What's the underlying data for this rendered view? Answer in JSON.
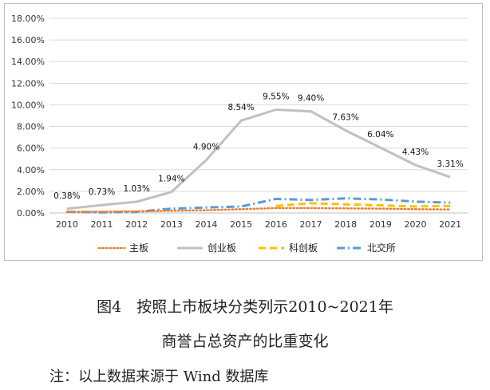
{
  "chart_data": {
    "type": "line",
    "categories": [
      "2010",
      "2011",
      "2012",
      "2013",
      "2014",
      "2015",
      "2016",
      "2017",
      "2018",
      "2019",
      "2020",
      "2021"
    ],
    "ylim": [
      0,
      18
    ],
    "yticks": [
      "0.00%",
      "2.00%",
      "4.00%",
      "6.00%",
      "8.00%",
      "10.00%",
      "12.00%",
      "14.00%",
      "16.00%",
      "18.00%"
    ],
    "grid": true,
    "legend_position": "bottom",
    "series": [
      {
        "name": "主板",
        "color": "#ED7D31",
        "dash": "dotted",
        "values": [
          0.1,
          0.12,
          0.15,
          0.2,
          0.25,
          0.35,
          0.45,
          0.45,
          0.42,
          0.4,
          0.35,
          0.32
        ],
        "labels": []
      },
      {
        "name": "创业板",
        "color": "#C0C0C0",
        "dash": "solid",
        "values": [
          0.38,
          0.73,
          1.03,
          1.94,
          4.9,
          8.54,
          9.55,
          9.4,
          7.63,
          6.04,
          4.43,
          3.31
        ],
        "labels": [
          "0.38%",
          "0.73%",
          "1.03%",
          "1.94%",
          "4.90%",
          "8.54%",
          "9.55%",
          "9.40%",
          "7.63%",
          "6.04%",
          "4.43%",
          "3.31%"
        ]
      },
      {
        "name": "科创板",
        "color": "#FFC000",
        "dash": "dashed",
        "values": [
          null,
          null,
          null,
          null,
          null,
          null,
          0.65,
          0.9,
          0.8,
          0.7,
          0.6,
          0.65
        ],
        "labels": []
      },
      {
        "name": "北交所",
        "color": "#5B9BD5",
        "dash": "dashdot",
        "values": [
          0.1,
          0.05,
          0.1,
          0.4,
          0.5,
          0.6,
          1.3,
          1.2,
          1.35,
          1.25,
          1.05,
          0.95
        ],
        "labels": []
      }
    ]
  },
  "caption": {
    "line1": "图4　按照上市板块分类列示2010~2021年",
    "line2": "商誉占总资产的比重变化"
  },
  "note": "注：以上数据来源于 Wind 数据库"
}
